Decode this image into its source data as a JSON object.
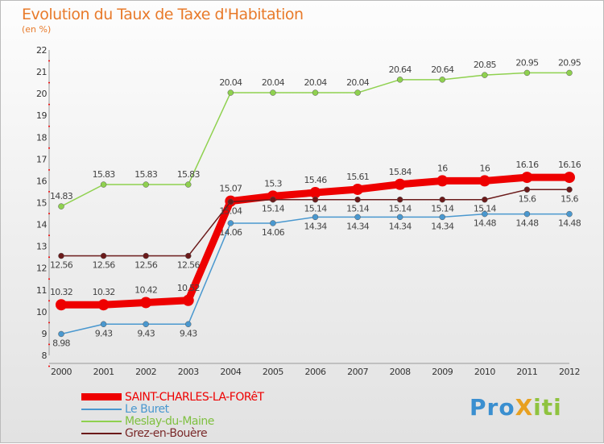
{
  "title": "Evolution du Taux de Taxe d'Habitation",
  "subtitle": "(en %)",
  "logo": "ProXiti",
  "chart_data": {
    "type": "line",
    "title": "Evolution du Taux de Taxe d'Habitation",
    "ylabel": "(en %)",
    "ylim": [
      8,
      22
    ],
    "yticks": [
      8,
      9,
      10,
      11,
      12,
      13,
      14,
      15,
      16,
      17,
      18,
      19,
      20,
      21,
      22
    ],
    "x": [
      "2000",
      "2001",
      "2002",
      "2003",
      "2004",
      "2005",
      "2006",
      "2007",
      "2008",
      "2009",
      "2010",
      "2011",
      "2012"
    ],
    "legend_position": "bottom-left",
    "series": [
      {
        "name": "Meslay-du-Maine",
        "color": "#8fd14f",
        "width": 1.5,
        "r": 3.5,
        "values": [
          14.83,
          15.83,
          15.83,
          15.83,
          20.04,
          20.04,
          20.04,
          20.04,
          20.64,
          20.64,
          20.85,
          20.95,
          20.95
        ]
      },
      {
        "name": "Le Buret",
        "color": "#4a98cf",
        "width": 1.5,
        "r": 3.5,
        "values": [
          8.98,
          9.43,
          9.43,
          9.43,
          14.06,
          14.06,
          14.34,
          14.34,
          14.34,
          14.34,
          14.48,
          14.48,
          14.48
        ]
      },
      {
        "name": "SAINT-CHARLES-LA-FORêT",
        "color": "#ee0000",
        "width": 9,
        "r": 7,
        "values": [
          10.32,
          10.32,
          10.42,
          10.52,
          15.07,
          15.3,
          15.46,
          15.61,
          15.84,
          16,
          16,
          16.16,
          16.16
        ]
      },
      {
        "name": "Grez-en-Bouère",
        "color": "#6b1a1a",
        "width": 1.5,
        "r": 3.5,
        "values": [
          12.56,
          12.56,
          12.56,
          12.56,
          15.04,
          15.14,
          15.14,
          15.14,
          15.14,
          15.14,
          15.14,
          15.6,
          15.6
        ]
      }
    ]
  }
}
